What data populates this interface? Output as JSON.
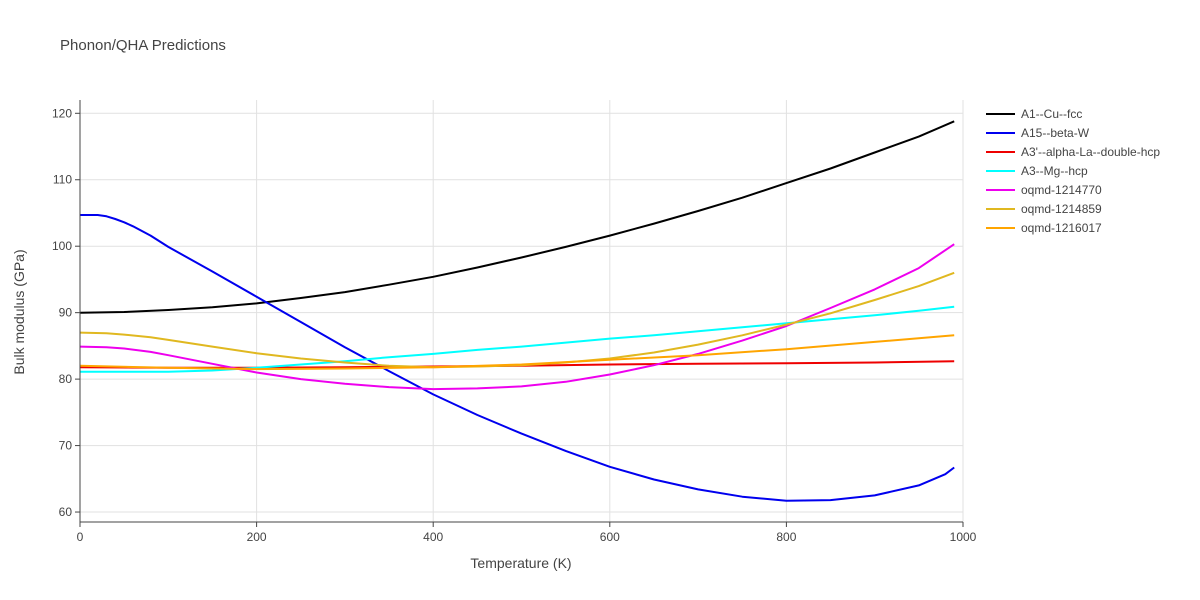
{
  "chart_data": {
    "type": "line",
    "title": "Phonon/QHA Predictions",
    "xlabel": "Temperature (K)",
    "ylabel": "Bulk modulus (GPa)",
    "xlim": [
      0,
      1000
    ],
    "ylim": [
      58.5,
      122
    ],
    "xticks": [
      0,
      200,
      400,
      600,
      800,
      1000
    ],
    "yticks": [
      60,
      70,
      80,
      90,
      100,
      110,
      120
    ],
    "grid": true,
    "legend_position": "top-right, outside plot",
    "series": [
      {
        "name": "A1--Cu--fcc",
        "color": "#000000",
        "x": [
          0,
          50,
          100,
          150,
          200,
          250,
          300,
          350,
          400,
          450,
          500,
          550,
          600,
          650,
          700,
          750,
          800,
          850,
          900,
          950,
          990
        ],
        "y": [
          90.0,
          90.1,
          90.4,
          90.8,
          91.4,
          92.2,
          93.1,
          94.2,
          95.4,
          96.8,
          98.3,
          99.9,
          101.6,
          103.4,
          105.3,
          107.3,
          109.5,
          111.7,
          114.1,
          116.5,
          118.8
        ]
      },
      {
        "name": "A15--beta-W",
        "color": "#0000ee",
        "x": [
          0,
          10,
          20,
          30,
          40,
          50,
          60,
          80,
          100,
          150,
          200,
          250,
          300,
          350,
          400,
          450,
          500,
          550,
          600,
          650,
          700,
          750,
          800,
          850,
          900,
          950,
          980,
          990
        ],
        "y": [
          104.7,
          104.7,
          104.7,
          104.5,
          104.1,
          103.6,
          103.0,
          101.6,
          99.9,
          96.2,
          92.4,
          88.6,
          84.8,
          81.2,
          77.7,
          74.6,
          71.8,
          69.2,
          66.8,
          64.9,
          63.4,
          62.3,
          61.7,
          61.8,
          62.5,
          64.0,
          65.7,
          66.7
        ]
      },
      {
        "name": "A3'--alpha-La--double-hcp",
        "color": "#ee0000",
        "x": [
          0,
          100,
          200,
          300,
          400,
          500,
          600,
          700,
          800,
          900,
          990
        ],
        "y": [
          81.8,
          81.7,
          81.7,
          81.8,
          81.9,
          82.0,
          82.2,
          82.3,
          82.4,
          82.5,
          82.7
        ]
      },
      {
        "name": "A3--Mg--hcp",
        "color": "#00ffff",
        "x": [
          0,
          50,
          100,
          150,
          200,
          250,
          300,
          350,
          400,
          450,
          500,
          550,
          600,
          650,
          700,
          750,
          800,
          850,
          900,
          950,
          990
        ],
        "y": [
          81.1,
          81.1,
          81.1,
          81.3,
          81.7,
          82.2,
          82.7,
          83.3,
          83.8,
          84.4,
          84.9,
          85.5,
          86.1,
          86.6,
          87.2,
          87.8,
          88.4,
          89.0,
          89.6,
          90.3,
          90.9
        ]
      },
      {
        "name": "oqmd-1214770",
        "color": "#ee00ee",
        "x": [
          0,
          30,
          50,
          80,
          100,
          150,
          200,
          250,
          300,
          350,
          400,
          450,
          500,
          550,
          600,
          650,
          700,
          750,
          800,
          850,
          900,
          950,
          990
        ],
        "y": [
          84.9,
          84.8,
          84.6,
          84.1,
          83.6,
          82.3,
          81.0,
          80.0,
          79.3,
          78.8,
          78.5,
          78.6,
          78.9,
          79.6,
          80.7,
          82.1,
          83.8,
          85.8,
          88.0,
          90.7,
          93.5,
          96.7,
          100.3
        ]
      },
      {
        "name": "oqmd-1214859",
        "color": "#e0b820",
        "x": [
          0,
          30,
          50,
          80,
          100,
          150,
          200,
          250,
          300,
          350,
          400,
          450,
          500,
          550,
          600,
          650,
          700,
          750,
          800,
          850,
          900,
          950,
          990
        ],
        "y": [
          87.0,
          86.9,
          86.7,
          86.3,
          85.9,
          84.9,
          83.9,
          83.1,
          82.5,
          82.0,
          81.8,
          81.9,
          82.1,
          82.5,
          83.1,
          84.0,
          85.2,
          86.6,
          88.2,
          89.9,
          91.9,
          94.0,
          96.0
        ]
      },
      {
        "name": "oqmd-1216017",
        "color": "#ffa500",
        "x": [
          0,
          100,
          200,
          300,
          400,
          500,
          600,
          700,
          800,
          900,
          990
        ],
        "y": [
          82.0,
          81.7,
          81.5,
          81.6,
          81.8,
          82.2,
          82.9,
          83.6,
          84.5,
          85.6,
          86.6
        ]
      }
    ]
  }
}
